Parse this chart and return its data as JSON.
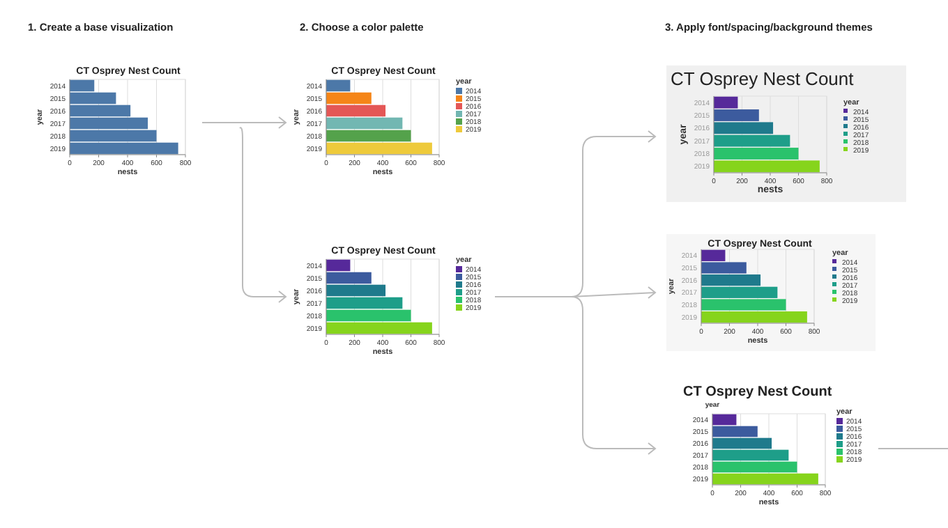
{
  "chart_data": [
    {
      "type": "bar",
      "orientation": "horizontal",
      "title": "CT Osprey Nest Count",
      "xlabel": "nests",
      "ylabel": "year",
      "categories": [
        "2014",
        "2015",
        "2016",
        "2017",
        "2018",
        "2019"
      ],
      "values": [
        170,
        320,
        420,
        540,
        600,
        750
      ],
      "color": "#4c78a8",
      "xlim": [
        0,
        800
      ],
      "xticks": [
        0,
        200,
        400,
        600,
        800
      ],
      "grid": "x",
      "annotations": [
        "1. Create a base visualization"
      ]
    },
    {
      "type": "bar",
      "orientation": "horizontal",
      "stacked": true,
      "title": "CT Osprey Nest Count",
      "xlabel": "nests",
      "ylabel": "year",
      "legend_title": "year",
      "legend": "right",
      "categories": [
        "2014",
        "2015",
        "2016",
        "2017",
        "2018",
        "2019"
      ],
      "series": [
        {
          "name": "2014",
          "color": "#4c78a8",
          "values": [
            170,
            null,
            null,
            null,
            null,
            null
          ]
        },
        {
          "name": "2015",
          "color": "#f58518",
          "values": [
            null,
            320,
            null,
            null,
            null,
            null
          ]
        },
        {
          "name": "2016",
          "color": "#e45756",
          "values": [
            null,
            null,
            420,
            null,
            null,
            null
          ]
        },
        {
          "name": "2017",
          "color": "#72b7b2",
          "values": [
            null,
            null,
            null,
            540,
            null,
            null
          ]
        },
        {
          "name": "2018",
          "color": "#54a24b",
          "values": [
            null,
            null,
            null,
            null,
            600,
            null
          ]
        },
        {
          "name": "2019",
          "color": "#eeca3b",
          "values": [
            null,
            null,
            null,
            null,
            null,
            750
          ]
        }
      ],
      "xlim": [
        0,
        800
      ],
      "xticks": [
        0,
        200,
        400,
        600,
        800
      ],
      "grid": "x",
      "annotations": [
        "2. Choose a color palette"
      ]
    },
    {
      "type": "bar",
      "orientation": "horizontal",
      "stacked": true,
      "title": "CT Osprey Nest Count",
      "xlabel": "nests",
      "ylabel": "year",
      "legend_title": "year",
      "legend": "right",
      "categories": [
        "2014",
        "2015",
        "2016",
        "2017",
        "2018",
        "2019"
      ],
      "series": [
        {
          "name": "2014",
          "color": "#56299a",
          "values": [
            170,
            null,
            null,
            null,
            null,
            null
          ]
        },
        {
          "name": "2015",
          "color": "#3c5b9e",
          "values": [
            null,
            320,
            null,
            null,
            null,
            null
          ]
        },
        {
          "name": "2016",
          "color": "#1f7a8c",
          "values": [
            null,
            null,
            420,
            null,
            null,
            null
          ]
        },
        {
          "name": "2017",
          "color": "#1e9e89",
          "values": [
            null,
            null,
            null,
            540,
            null,
            null
          ]
        },
        {
          "name": "2018",
          "color": "#2ac26c",
          "values": [
            null,
            null,
            null,
            null,
            600,
            null
          ]
        },
        {
          "name": "2019",
          "color": "#86d41c",
          "values": [
            null,
            null,
            null,
            null,
            null,
            750
          ]
        }
      ],
      "xlim": [
        0,
        800
      ],
      "xticks": [
        0,
        200,
        400,
        600,
        800
      ],
      "grid": "x"
    },
    {
      "type": "bar",
      "orientation": "horizontal",
      "stacked": true,
      "title": "CT Osprey Nest Count",
      "xlabel": "nests",
      "ylabel": "year",
      "legend_title": "year",
      "legend": "right",
      "categories": [
        "2014",
        "2015",
        "2016",
        "2017",
        "2018",
        "2019"
      ],
      "series": [
        {
          "name": "2014",
          "color": "#56299a",
          "values": [
            170,
            null,
            null,
            null,
            null,
            null
          ]
        },
        {
          "name": "2015",
          "color": "#3c5b9e",
          "values": [
            null,
            320,
            null,
            null,
            null,
            null
          ]
        },
        {
          "name": "2016",
          "color": "#1f7a8c",
          "values": [
            null,
            null,
            420,
            null,
            null,
            null
          ]
        },
        {
          "name": "2017",
          "color": "#1e9e89",
          "values": [
            null,
            null,
            null,
            540,
            null,
            null
          ]
        },
        {
          "name": "2018",
          "color": "#2ac26c",
          "values": [
            null,
            null,
            null,
            null,
            600,
            null
          ]
        },
        {
          "name": "2019",
          "color": "#86d41c",
          "values": [
            null,
            null,
            null,
            null,
            null,
            750
          ]
        }
      ],
      "xlim": [
        0,
        800
      ],
      "xticks": [
        0,
        200,
        400,
        600,
        800
      ],
      "grid": "x",
      "annotations": [
        "3. Apply font/spacing/background themes"
      ]
    },
    {
      "type": "bar",
      "orientation": "horizontal",
      "stacked": true,
      "title": "CT Osprey Nest Count",
      "xlabel": "nests",
      "ylabel": "year",
      "legend_title": "year",
      "legend": "right",
      "categories": [
        "2014",
        "2015",
        "2016",
        "2017",
        "2018",
        "2019"
      ],
      "series": [
        {
          "name": "2014",
          "color": "#56299a",
          "values": [
            170,
            null,
            null,
            null,
            null,
            null
          ]
        },
        {
          "name": "2015",
          "color": "#3c5b9e",
          "values": [
            null,
            320,
            null,
            null,
            null,
            null
          ]
        },
        {
          "name": "2016",
          "color": "#1f7a8c",
          "values": [
            null,
            null,
            420,
            null,
            null,
            null
          ]
        },
        {
          "name": "2017",
          "color": "#1e9e89",
          "values": [
            null,
            null,
            null,
            540,
            null,
            null
          ]
        },
        {
          "name": "2018",
          "color": "#2ac26c",
          "values": [
            null,
            null,
            null,
            null,
            600,
            null
          ]
        },
        {
          "name": "2019",
          "color": "#86d41c",
          "values": [
            null,
            null,
            null,
            null,
            null,
            750
          ]
        }
      ],
      "xlim": [
        0,
        800
      ],
      "xticks": [
        0,
        200,
        400,
        600,
        800
      ],
      "grid": "x"
    },
    {
      "type": "bar",
      "orientation": "horizontal",
      "stacked": true,
      "title": "CT Osprey Nest Count",
      "xlabel": "nests",
      "ylabel": "year",
      "legend_title": "year",
      "legend": "right",
      "categories": [
        "2014",
        "2015",
        "2016",
        "2017",
        "2018",
        "2019"
      ],
      "series": [
        {
          "name": "2014",
          "color": "#56299a",
          "values": [
            170,
            null,
            null,
            null,
            null,
            null
          ]
        },
        {
          "name": "2015",
          "color": "#3c5b9e",
          "values": [
            null,
            320,
            null,
            null,
            null,
            null
          ]
        },
        {
          "name": "2016",
          "color": "#1f7a8c",
          "values": [
            null,
            null,
            420,
            null,
            null,
            null
          ]
        },
        {
          "name": "2017",
          "color": "#1e9e89",
          "values": [
            null,
            null,
            null,
            540,
            null,
            null
          ]
        },
        {
          "name": "2018",
          "color": "#2ac26c",
          "values": [
            null,
            null,
            null,
            null,
            600,
            null
          ]
        },
        {
          "name": "2019",
          "color": "#86d41c",
          "values": [
            null,
            null,
            null,
            null,
            null,
            750
          ]
        }
      ],
      "xlim": [
        0,
        800
      ],
      "xticks": [
        0,
        200,
        400,
        600,
        800
      ],
      "grid": "x"
    }
  ]
}
